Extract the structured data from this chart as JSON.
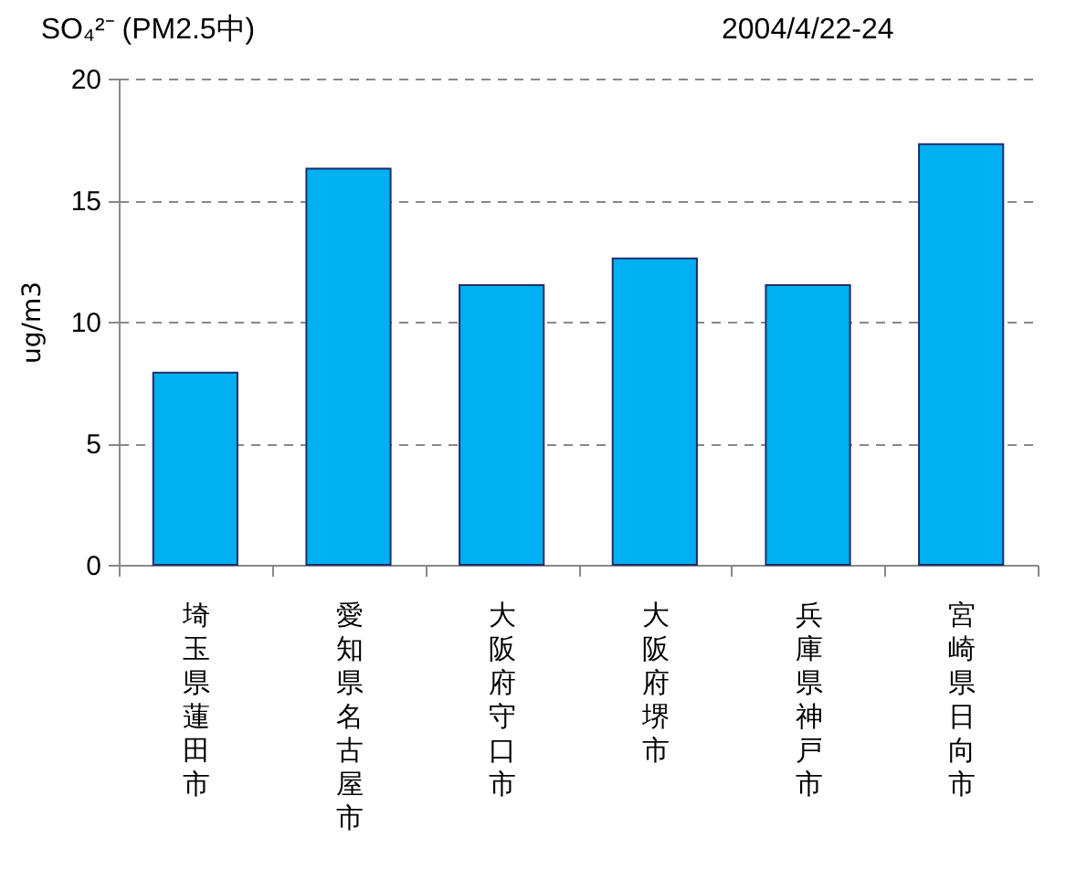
{
  "chart_data": {
    "type": "bar",
    "title": "SO₄²⁻ (PM2.5中)",
    "subtitle": "2004/4/22-24",
    "ylabel": "ug/m3",
    "categories": [
      "埼玉県蓮田市",
      "愛知県名古屋市",
      "大阪府守口市",
      "大阪府堺市",
      "兵庫県神戸市",
      "宮崎県日向市"
    ],
    "values": [
      7.9,
      16.3,
      11.5,
      12.6,
      11.5,
      17.3
    ],
    "color": "#00b0f0",
    "ylim": [
      0,
      20
    ],
    "yticks": [
      0,
      5,
      10,
      15,
      20
    ],
    "grid": "y"
  }
}
